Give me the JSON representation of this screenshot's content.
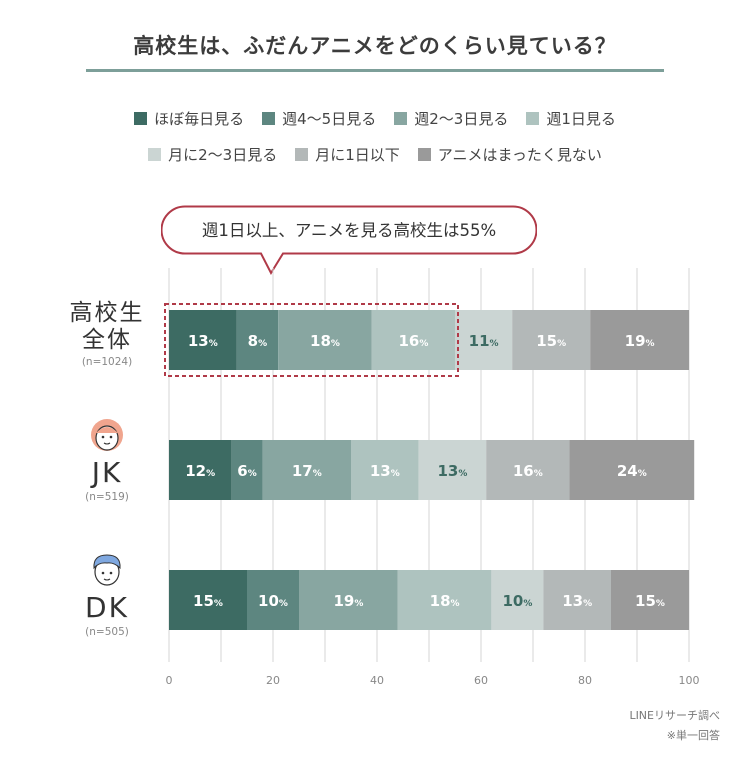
{
  "title": "高校生は、ふだんアニメをどのくらい見ている？",
  "callout": "週1日以上、アニメを見る高校生は55%",
  "source": "LINEリサーチ調べ",
  "note": "※単一回答",
  "colors": [
    "#3d6b63",
    "#5d8680",
    "#88a6a1",
    "#aec3bf",
    "#cbd5d3",
    "#b3b8b8",
    "#9a9a9a"
  ],
  "chart_data": {
    "type": "bar",
    "orientation": "horizontal-stacked",
    "title": "高校生は、ふだんアニメをどのくらい見ている？",
    "xlim": [
      0,
      100
    ],
    "xticks": [
      "0",
      "20",
      "40",
      "60",
      "80",
      "100"
    ],
    "legend": [
      "ほぼ毎日見る",
      "週4〜5日見る",
      "週2〜3日見る",
      "週1日見る",
      "月に2〜3日見る",
      "月に1日以下",
      "アニメはまったく見ない"
    ],
    "groups": [
      {
        "name": "高校生全体",
        "name_lines": [
          "高校生",
          "全体"
        ],
        "n": "(n=1024)",
        "icon": "none",
        "values": [
          13,
          8,
          18,
          16,
          11,
          15,
          19
        ]
      },
      {
        "name": "JK",
        "name_lines": [
          "JK"
        ],
        "n": "(n=519)",
        "icon": "girl-face-icon",
        "values": [
          12,
          6,
          17,
          13,
          13,
          16,
          24
        ]
      },
      {
        "name": "DK",
        "name_lines": [
          "DK"
        ],
        "n": "(n=505)",
        "icon": "boy-face-icon",
        "values": [
          15,
          10,
          19,
          18,
          10,
          13,
          15
        ]
      }
    ],
    "unit": "%"
  }
}
